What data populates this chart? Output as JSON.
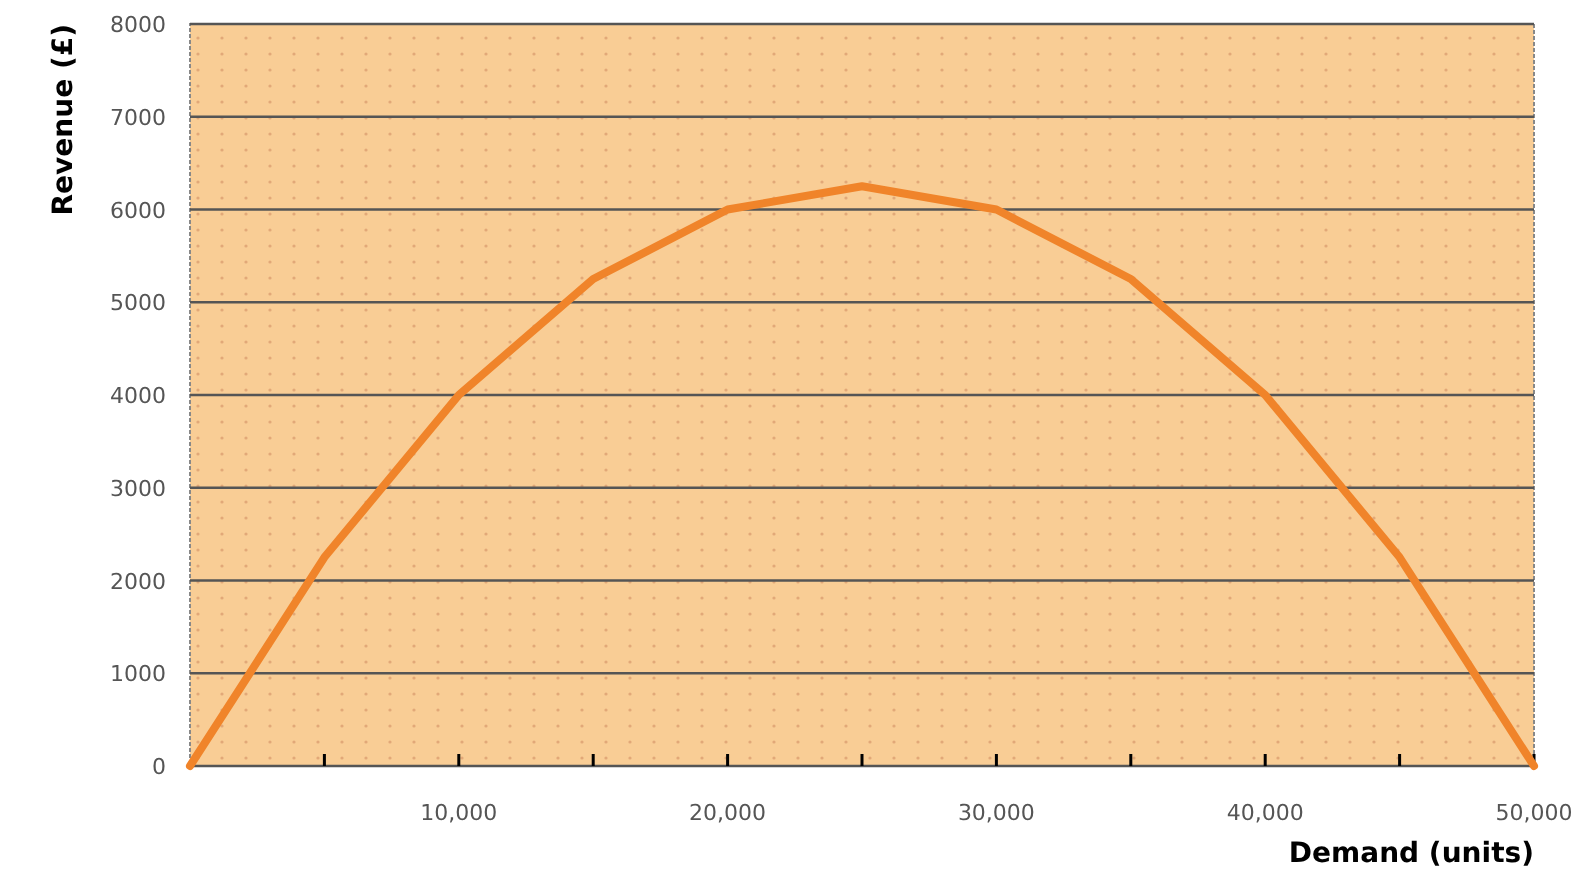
{
  "chart_data": {
    "type": "line",
    "xlabel": "Demand (units)",
    "ylabel": "Revenue (£)",
    "x": [
      0,
      5000,
      10000,
      15000,
      20000,
      25000,
      30000,
      35000,
      40000,
      45000,
      50000
    ],
    "series": [
      {
        "color": "#f0842a",
        "values": [
          0,
          2250,
          4000,
          5250,
          6000,
          6250,
          6000,
          5250,
          4000,
          2250,
          0
        ]
      }
    ],
    "xlim": [
      0,
      50000
    ],
    "ylim": [
      0,
      8000
    ],
    "xticks": [
      {
        "value": 5000,
        "label": null
      },
      {
        "value": 10000,
        "label": "10,000"
      },
      {
        "value": 15000,
        "label": null
      },
      {
        "value": 20000,
        "label": "20,000"
      },
      {
        "value": 25000,
        "label": null
      },
      {
        "value": 30000,
        "label": "30,000"
      },
      {
        "value": 35000,
        "label": null
      },
      {
        "value": 40000,
        "label": "40,000"
      },
      {
        "value": 45000,
        "label": null
      },
      {
        "value": 50000,
        "label": "50,000"
      }
    ],
    "yticks": [
      0,
      1000,
      2000,
      3000,
      4000,
      5000,
      6000,
      7000,
      8000
    ],
    "grid": "y",
    "marker": "none",
    "line_style": "solid"
  }
}
